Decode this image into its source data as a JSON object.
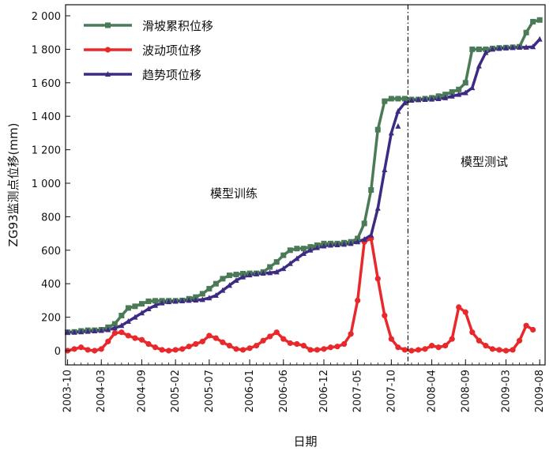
{
  "chart_data": {
    "type": "line",
    "xlabel": "日期",
    "ylabel": "ZG93监测点位移(mm)",
    "ylim": [
      0,
      2000
    ],
    "yticks": [
      0,
      200,
      400,
      600,
      800,
      1000,
      1200,
      1400,
      1600,
      1800,
      2000
    ],
    "ytick_labels": [
      "0",
      "200",
      "400",
      "600",
      "800",
      "1 000",
      "1 200",
      "1 400",
      "1 600",
      "1 800",
      "2 000"
    ],
    "xlim": [
      "2003-10",
      "2009-09"
    ],
    "xticks": [
      "2003-10",
      "2004-03",
      "2004-09",
      "2005-02",
      "2005-07",
      "2006-01",
      "2006-06",
      "2006-12",
      "2007-05",
      "2007-10",
      "2008-04",
      "2008-09",
      "2009-03",
      "2009-08"
    ],
    "split_date": "2007-12",
    "annotations": [
      "模型训练",
      "模型测试"
    ],
    "legend_position": "top-left",
    "grid": false,
    "series": [
      {
        "name": "滑坡累积位移",
        "color": "#4a7a56",
        "marker": "square",
        "points": [
          [
            "2003-10",
            110
          ],
          [
            "2003-11",
            112
          ],
          [
            "2003-12",
            118
          ],
          [
            "2004-01",
            122
          ],
          [
            "2004-02",
            122
          ],
          [
            "2004-03",
            125
          ],
          [
            "2004-04",
            140
          ],
          [
            "2004-05",
            160
          ],
          [
            "2004-06",
            210
          ],
          [
            "2004-07",
            255
          ],
          [
            "2004-08",
            265
          ],
          [
            "2004-09",
            280
          ],
          [
            "2004-10",
            295
          ],
          [
            "2004-11",
            298
          ],
          [
            "2004-12",
            298
          ],
          [
            "2005-01",
            298
          ],
          [
            "2005-02",
            298
          ],
          [
            "2005-03",
            300
          ],
          [
            "2005-04",
            310
          ],
          [
            "2005-05",
            320
          ],
          [
            "2005-06",
            340
          ],
          [
            "2005-07",
            370
          ],
          [
            "2005-08",
            400
          ],
          [
            "2005-09",
            430
          ],
          [
            "2005-10",
            450
          ],
          [
            "2005-11",
            455
          ],
          [
            "2005-12",
            460
          ],
          [
            "2006-01",
            462
          ],
          [
            "2006-02",
            462
          ],
          [
            "2006-03",
            470
          ],
          [
            "2006-04",
            500
          ],
          [
            "2006-05",
            530
          ],
          [
            "2006-06",
            570
          ],
          [
            "2006-07",
            600
          ],
          [
            "2006-08",
            610
          ],
          [
            "2006-09",
            610
          ],
          [
            "2006-10",
            620
          ],
          [
            "2006-11",
            630
          ],
          [
            "2006-12",
            640
          ],
          [
            "2007-01",
            640
          ],
          [
            "2007-02",
            640
          ],
          [
            "2007-03",
            645
          ],
          [
            "2007-04",
            650
          ],
          [
            "2007-05",
            670
          ],
          [
            "2007-06",
            760
          ],
          [
            "2007-07",
            960
          ],
          [
            "2007-08",
            1320
          ],
          [
            "2007-09",
            1490
          ],
          [
            "2007-10",
            1505
          ],
          [
            "2007-11",
            1505
          ],
          [
            "2007-12",
            1505
          ],
          [
            "2008-01",
            1500
          ],
          [
            "2008-02",
            1500
          ],
          [
            "2008-03",
            1505
          ],
          [
            "2008-04",
            1510
          ],
          [
            "2008-05",
            1520
          ],
          [
            "2008-06",
            1530
          ],
          [
            "2008-07",
            1545
          ],
          [
            "2008-08",
            1560
          ],
          [
            "2008-09",
            1600
          ],
          [
            "2008-10",
            1800
          ],
          [
            "2008-11",
            1800
          ],
          [
            "2008-12",
            1800
          ],
          [
            "2009-01",
            1805
          ],
          [
            "2009-02",
            1808
          ],
          [
            "2009-03",
            1810
          ],
          [
            "2009-04",
            1812
          ],
          [
            "2009-05",
            1815
          ],
          [
            "2009-06",
            1900
          ],
          [
            "2009-07",
            1965
          ],
          [
            "2009-08",
            1975
          ]
        ]
      },
      {
        "name": "波动项位移",
        "color": "#e8282b",
        "marker": "circle",
        "points": [
          [
            "2003-10",
            0
          ],
          [
            "2003-11",
            10
          ],
          [
            "2003-12",
            20
          ],
          [
            "2004-01",
            5
          ],
          [
            "2004-02",
            0
          ],
          [
            "2004-03",
            10
          ],
          [
            "2004-04",
            55
          ],
          [
            "2004-05",
            105
          ],
          [
            "2004-06",
            110
          ],
          [
            "2004-07",
            90
          ],
          [
            "2004-08",
            75
          ],
          [
            "2004-09",
            65
          ],
          [
            "2004-10",
            40
          ],
          [
            "2004-11",
            20
          ],
          [
            "2004-12",
            5
          ],
          [
            "2005-01",
            0
          ],
          [
            "2005-02",
            5
          ],
          [
            "2005-03",
            10
          ],
          [
            "2005-04",
            25
          ],
          [
            "2005-05",
            40
          ],
          [
            "2005-06",
            55
          ],
          [
            "2005-07",
            90
          ],
          [
            "2005-08",
            75
          ],
          [
            "2005-09",
            50
          ],
          [
            "2005-10",
            30
          ],
          [
            "2005-11",
            10
          ],
          [
            "2005-12",
            5
          ],
          [
            "2006-01",
            15
          ],
          [
            "2006-02",
            30
          ],
          [
            "2006-03",
            60
          ],
          [
            "2006-04",
            85
          ],
          [
            "2006-05",
            110
          ],
          [
            "2006-06",
            70
          ],
          [
            "2006-07",
            45
          ],
          [
            "2006-08",
            40
          ],
          [
            "2006-09",
            30
          ],
          [
            "2006-10",
            5
          ],
          [
            "2006-11",
            5
          ],
          [
            "2006-12",
            10
          ],
          [
            "2007-01",
            20
          ],
          [
            "2007-02",
            25
          ],
          [
            "2007-03",
            40
          ],
          [
            "2007-04",
            100
          ],
          [
            "2007-05",
            300
          ],
          [
            "2007-06",
            650
          ],
          [
            "2007-07",
            670
          ],
          [
            "2007-08",
            430
          ],
          [
            "2007-09",
            210
          ],
          [
            "2007-10",
            70
          ],
          [
            "2007-11",
            20
          ],
          [
            "2007-12",
            5
          ],
          [
            "2008-01",
            0
          ],
          [
            "2008-02",
            5
          ],
          [
            "2008-03",
            10
          ],
          [
            "2008-04",
            30
          ],
          [
            "2008-05",
            20
          ],
          [
            "2008-06",
            30
          ],
          [
            "2008-07",
            70
          ],
          [
            "2008-08",
            260
          ],
          [
            "2008-09",
            230
          ],
          [
            "2008-10",
            110
          ],
          [
            "2008-11",
            60
          ],
          [
            "2008-12",
            30
          ],
          [
            "2009-01",
            10
          ],
          [
            "2009-02",
            5
          ],
          [
            "2009-03",
            0
          ],
          [
            "2009-04",
            5
          ],
          [
            "2009-05",
            60
          ],
          [
            "2009-06",
            150
          ],
          [
            "2009-07",
            125
          ]
        ]
      },
      {
        "name": "趋势项位移",
        "color": "#3d2a82",
        "marker": "triangle",
        "points": [
          [
            "2003-10",
            110
          ],
          [
            "2003-11",
            110
          ],
          [
            "2003-12",
            112
          ],
          [
            "2004-01",
            115
          ],
          [
            "2004-02",
            118
          ],
          [
            "2004-03",
            120
          ],
          [
            "2004-04",
            125
          ],
          [
            "2004-05",
            135
          ],
          [
            "2004-06",
            150
          ],
          [
            "2004-07",
            175
          ],
          [
            "2004-08",
            200
          ],
          [
            "2004-09",
            225
          ],
          [
            "2004-10",
            250
          ],
          [
            "2004-11",
            270
          ],
          [
            "2004-12",
            285
          ],
          [
            "2005-01",
            292
          ],
          [
            "2005-02",
            295
          ],
          [
            "2005-03",
            298
          ],
          [
            "2005-04",
            300
          ],
          [
            "2005-05",
            302
          ],
          [
            "2005-06",
            305
          ],
          [
            "2005-07",
            315
          ],
          [
            "2005-08",
            330
          ],
          [
            "2005-09",
            360
          ],
          [
            "2005-10",
            390
          ],
          [
            "2005-11",
            420
          ],
          [
            "2005-12",
            440
          ],
          [
            "2006-01",
            452
          ],
          [
            "2006-02",
            458
          ],
          [
            "2006-03",
            462
          ],
          [
            "2006-04",
            465
          ],
          [
            "2006-05",
            470
          ],
          [
            "2006-06",
            490
          ],
          [
            "2006-07",
            520
          ],
          [
            "2006-08",
            550
          ],
          [
            "2006-09",
            580
          ],
          [
            "2006-10",
            600
          ],
          [
            "2006-11",
            615
          ],
          [
            "2006-12",
            625
          ],
          [
            "2007-01",
            630
          ],
          [
            "2007-02",
            632
          ],
          [
            "2007-03",
            635
          ],
          [
            "2007-04",
            640
          ],
          [
            "2007-05",
            650
          ],
          [
            "2007-06",
            665
          ],
          [
            "2007-07",
            690
          ],
          [
            "2007-08",
            850
          ],
          [
            "2007-09",
            1080
          ],
          [
            "2007-10",
            1300
          ],
          [
            "2007-11",
            1430
          ],
          [
            "2007-12",
            1480
          ],
          [
            "2008-01",
            1495
          ],
          [
            "2008-02",
            1500
          ],
          [
            "2008-03",
            1500
          ],
          [
            "2008-04",
            1502
          ],
          [
            "2008-05",
            1505
          ],
          [
            "2008-06",
            1510
          ],
          [
            "2008-07",
            1520
          ],
          [
            "2008-08",
            1530
          ],
          [
            "2008-09",
            1540
          ],
          [
            "2008-10",
            1570
          ],
          [
            "2008-11",
            1700
          ],
          [
            "2008-12",
            1780
          ],
          [
            "2009-01",
            1800
          ],
          [
            "2009-02",
            1805
          ],
          [
            "2009-03",
            1808
          ],
          [
            "2009-04",
            1810
          ],
          [
            "2009-05",
            1812
          ],
          [
            "2009-06",
            1812
          ],
          [
            "2009-07",
            1815
          ],
          [
            "2009-08",
            1860
          ]
        ],
        "outliers": [
          [
            "2007-11",
            1340
          ]
        ]
      }
    ]
  }
}
